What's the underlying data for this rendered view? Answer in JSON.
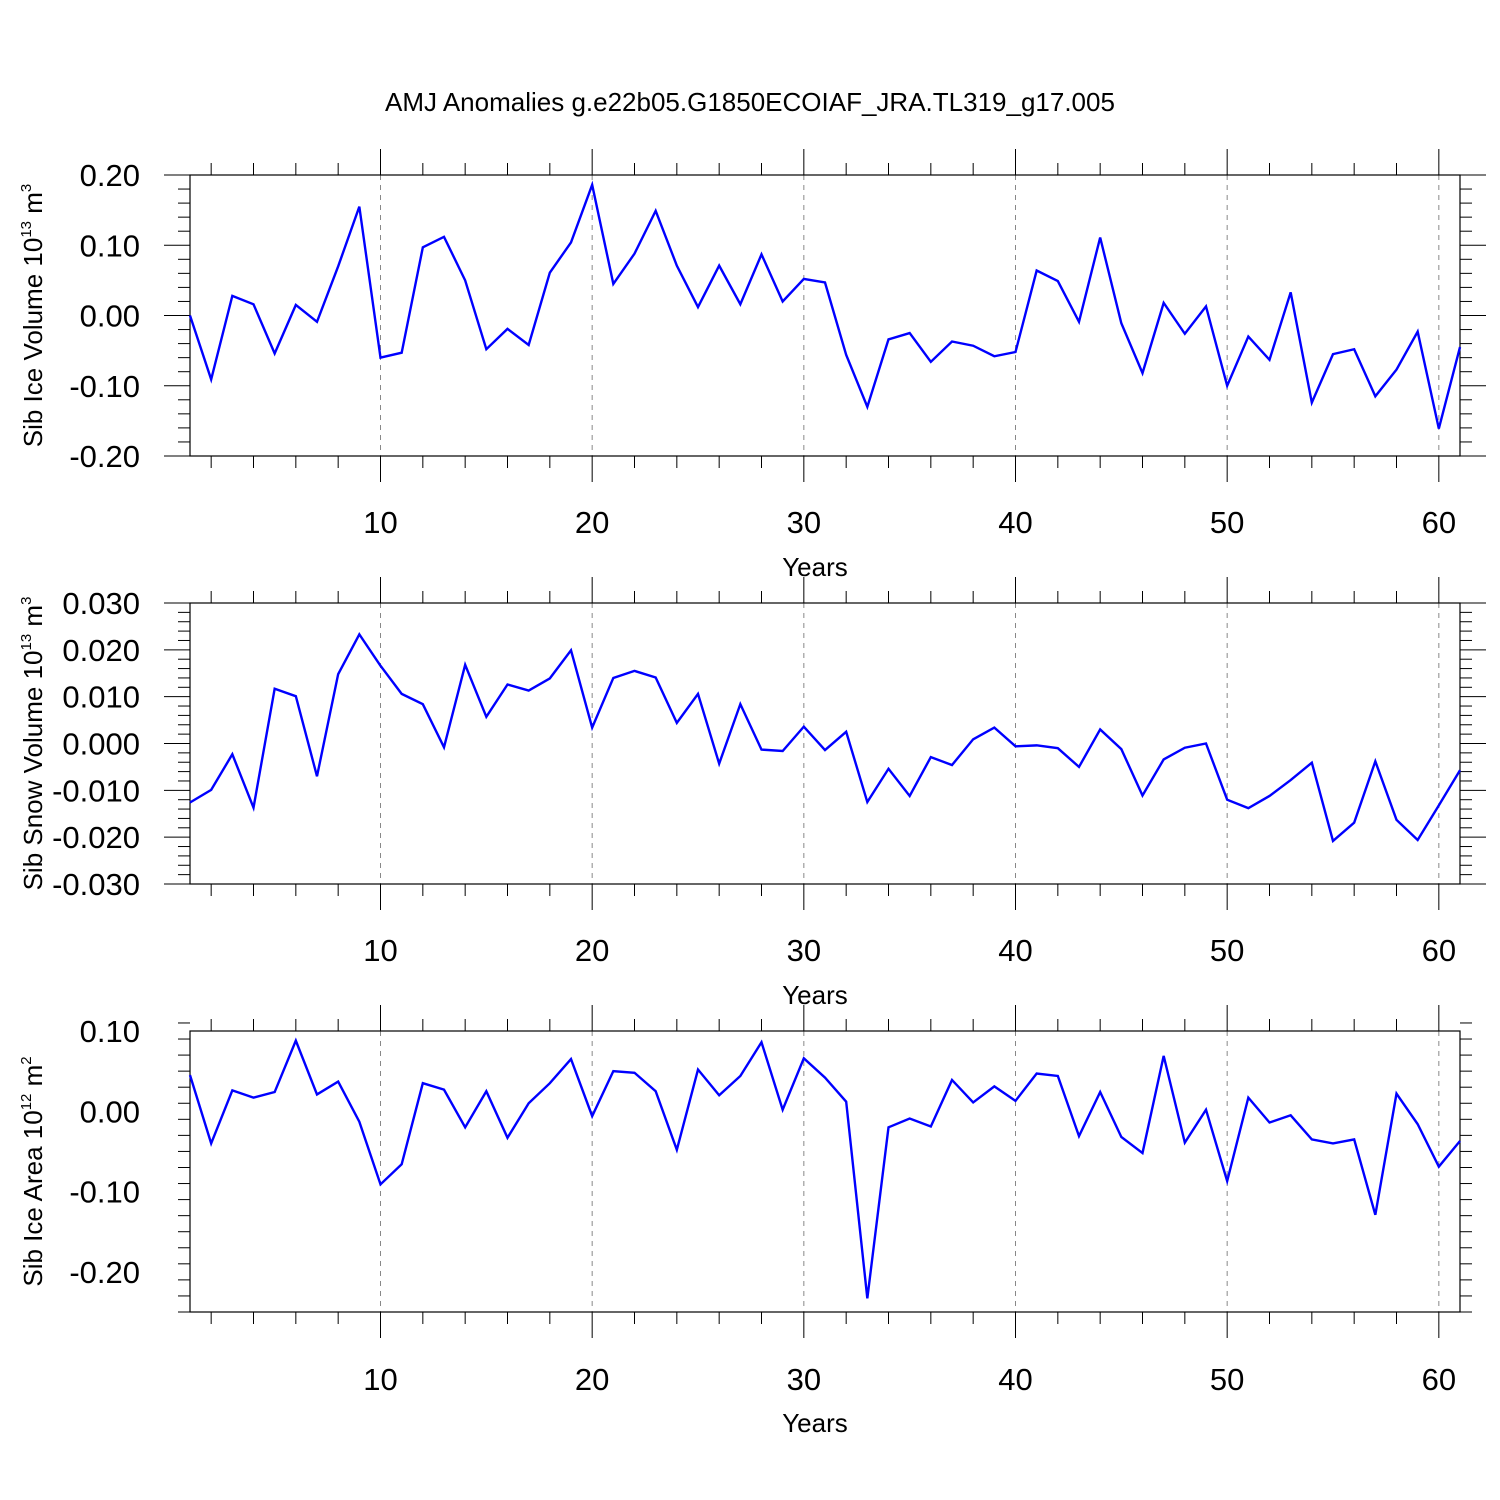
{
  "title": "AMJ Anomalies g.e22b05.G1850ECOIAF_JRA.TL319_g17.005",
  "colors": {
    "line": "#0000ff",
    "axis": "#000000",
    "grid": "#888888"
  },
  "chart_data": [
    {
      "type": "line",
      "xlabel": "Years",
      "ylabel": {
        "text": "Sib Ice Volume 10",
        "exponent": "13",
        "unit": " m",
        "unit_exponent": "3"
      },
      "xlim": [
        1,
        61
      ],
      "ylim": [
        -0.2,
        0.2
      ],
      "xticks": [
        10,
        20,
        30,
        40,
        50,
        60
      ],
      "xtick_labels": [
        "10",
        "20",
        "30",
        "40",
        "50",
        "60"
      ],
      "yticks": [
        -0.2,
        -0.1,
        0.0,
        0.1,
        0.2
      ],
      "ytick_labels": [
        "-0.20",
        "-0.10",
        "0.00",
        "0.10",
        "0.20"
      ],
      "grid": "vertical dashed at major x ticks",
      "x_start": 1,
      "values": [
        0.0,
        -0.091,
        0.028,
        0.016,
        -0.054,
        0.015,
        -0.009,
        0.07,
        0.155,
        -0.06,
        -0.053,
        0.097,
        0.112,
        0.05,
        -0.048,
        -0.019,
        -0.042,
        0.061,
        0.104,
        0.186,
        0.045,
        0.088,
        0.149,
        0.071,
        0.012,
        0.071,
        0.016,
        0.087,
        0.02,
        0.052,
        0.047,
        -0.056,
        -0.13,
        -0.034,
        -0.025,
        -0.066,
        -0.037,
        -0.043,
        -0.058,
        -0.052,
        0.064,
        0.049,
        -0.009,
        0.111,
        -0.011,
        -0.082,
        0.018,
        -0.026,
        0.013,
        -0.1,
        -0.03,
        -0.063,
        0.033,
        -0.124,
        -0.055,
        -0.048,
        -0.115,
        -0.077,
        -0.023,
        -0.161,
        -0.045
      ]
    },
    {
      "type": "line",
      "xlabel": "Years",
      "ylabel": {
        "text": "Sib Snow Volume 10",
        "exponent": "13",
        "unit": " m",
        "unit_exponent": "3"
      },
      "xlim": [
        1,
        61
      ],
      "ylim": [
        -0.03,
        0.03
      ],
      "xticks": [
        10,
        20,
        30,
        40,
        50,
        60
      ],
      "xtick_labels": [
        "10",
        "20",
        "30",
        "40",
        "50",
        "60"
      ],
      "yticks": [
        -0.03,
        -0.02,
        -0.01,
        0.0,
        0.01,
        0.02,
        0.03
      ],
      "ytick_labels": [
        "-0.030",
        "-0.020",
        "-0.010",
        "0.000",
        "0.010",
        "0.020",
        "0.030"
      ],
      "grid": "vertical dashed at major x ticks",
      "x_start": 1,
      "values": [
        -0.0126,
        -0.0099,
        -0.0023,
        -0.0137,
        0.0117,
        0.0101,
        -0.007,
        0.0148,
        0.0233,
        0.0166,
        0.0106,
        0.0084,
        -0.0008,
        0.0168,
        0.0057,
        0.0126,
        0.0113,
        0.0139,
        0.0199,
        0.0034,
        0.014,
        0.0155,
        0.0141,
        0.0044,
        0.0106,
        -0.0043,
        0.0084,
        -0.0013,
        -0.0016,
        0.0036,
        -0.0014,
        0.0025,
        -0.0125,
        -0.0054,
        -0.0112,
        -0.0029,
        -0.0046,
        0.0009,
        0.0034,
        -0.0006,
        -0.0004,
        -0.001,
        -0.005,
        0.003,
        -0.0012,
        -0.0111,
        -0.0034,
        -0.0009,
        0.0,
        -0.012,
        -0.0138,
        -0.0112,
        -0.0078,
        -0.0041,
        -0.0208,
        -0.0169,
        -0.0038,
        -0.0163,
        -0.0206,
        -0.0132,
        -0.0057
      ]
    },
    {
      "type": "line",
      "xlabel": "Years",
      "ylabel": {
        "text": "Sib Ice Area 10",
        "exponent": "12",
        "unit": " m",
        "unit_exponent": "2"
      },
      "xlim": [
        1,
        61
      ],
      "ylim": [
        -0.25,
        0.1
      ],
      "xticks": [
        10,
        20,
        30,
        40,
        50,
        60
      ],
      "xtick_labels": [
        "10",
        "20",
        "30",
        "40",
        "50",
        "60"
      ],
      "yticks": [
        -0.2,
        -0.1,
        0.0,
        0.1
      ],
      "ytick_labels": [
        "-0.20",
        "-0.10",
        "0.00",
        "0.10"
      ],
      "grid": "vertical dashed at major x ticks",
      "x_start": 1,
      "values": [
        0.045,
        -0.04,
        0.026,
        0.017,
        0.024,
        0.088,
        0.021,
        0.037,
        -0.013,
        -0.091,
        -0.066,
        0.035,
        0.027,
        -0.02,
        0.025,
        -0.033,
        0.01,
        0.035,
        0.065,
        -0.006,
        0.05,
        0.048,
        0.025,
        -0.048,
        0.052,
        0.02,
        0.044,
        0.086,
        0.002,
        0.066,
        0.042,
        0.012,
        -0.233,
        -0.02,
        -0.009,
        -0.019,
        0.039,
        0.011,
        0.031,
        0.013,
        0.047,
        0.044,
        -0.031,
        0.024,
        -0.032,
        -0.052,
        0.069,
        -0.039,
        0.002,
        -0.087,
        0.017,
        -0.014,
        -0.005,
        -0.035,
        -0.04,
        -0.035,
        -0.129,
        0.022,
        -0.016,
        -0.069,
        -0.037
      ]
    }
  ]
}
